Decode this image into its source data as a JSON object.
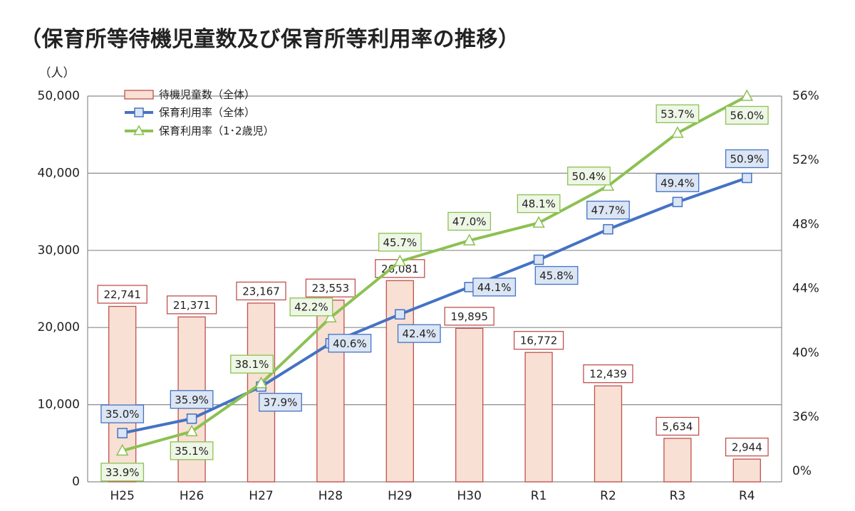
{
  "title": "（保育所等待機児童数及び保育所等利用率の推移）",
  "chart_data": {
    "type": "bar",
    "categories": [
      "H25",
      "H26",
      "H27",
      "H28",
      "H29",
      "H30",
      "R1",
      "R2",
      "R3",
      "R4"
    ],
    "y_left_unit": "（人）",
    "y_left_ticks": [
      "0",
      "10,000",
      "20,000",
      "30,000",
      "40,000",
      "50,000"
    ],
    "y_left_range": [
      0,
      50000
    ],
    "y_right_ticks": [
      "0%",
      "36%",
      "40%",
      "44%",
      "48%",
      "52%",
      "56%"
    ],
    "y_right_range": [
      32,
      56
    ],
    "y_right_break": "0% at baseline, axis broken to 32%–56%",
    "grid": true,
    "legend_position": "top-left",
    "series": [
      {
        "name": "待機児童数（全体）",
        "kind": "bar",
        "axis": "left",
        "color": "#f8e0d4",
        "border_color": "#c0504d",
        "values": [
          22741,
          21371,
          23167,
          23553,
          26081,
          19895,
          16772,
          12439,
          5634,
          2944
        ],
        "labels": [
          "22,741",
          "21,371",
          "23,167",
          "23,553",
          "26,081",
          "19,895",
          "16,772",
          "12,439",
          "5,634",
          "2,944"
        ]
      },
      {
        "name": "保育利用率（全体）",
        "kind": "line",
        "axis": "right",
        "color": "#4472c4",
        "marker": "square",
        "values": [
          35.0,
          35.9,
          37.9,
          40.6,
          42.4,
          44.1,
          45.8,
          47.7,
          49.4,
          50.9
        ],
        "labels": [
          "35.0%",
          "35.9%",
          "37.9%",
          "40.6%",
          "42.4%",
          "44.1%",
          "45.8%",
          "47.7%",
          "49.4%",
          "50.9%"
        ]
      },
      {
        "name": "保育利用率（1･2歳児）",
        "kind": "line",
        "axis": "right",
        "color": "#8cc152",
        "marker": "triangle",
        "values": [
          33.9,
          35.1,
          38.1,
          42.2,
          45.7,
          47.0,
          48.1,
          50.4,
          53.7,
          56.0
        ],
        "labels": [
          "33.9%",
          "35.1%",
          "38.1%",
          "42.2%",
          "45.7%",
          "47.0%",
          "48.1%",
          "50.4%",
          "53.7%",
          "56.0%"
        ]
      }
    ]
  }
}
